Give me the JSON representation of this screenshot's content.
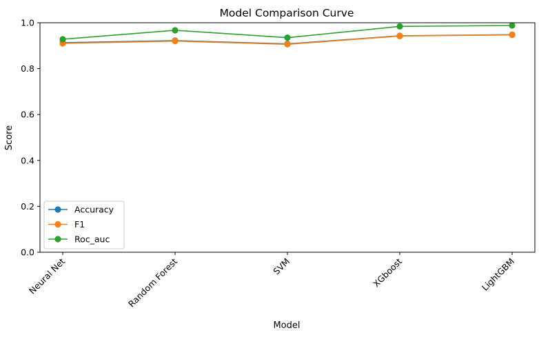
{
  "chart_data": {
    "type": "line",
    "title": "Model Comparison Curve",
    "xlabel": "Model",
    "ylabel": "Score",
    "categories": [
      "Neural Net",
      "Random Forest",
      "SVM",
      "XGboost",
      "LightGBM"
    ],
    "ylim": [
      0,
      1.0
    ],
    "yticks": [
      0.0,
      0.2,
      0.4,
      0.6,
      0.8,
      1.0
    ],
    "ytick_labels": [
      "0.0",
      "0.2",
      "0.4",
      "0.6",
      "0.8",
      "1.0"
    ],
    "grid": false,
    "legend_position": "lower-left",
    "series": [
      {
        "name": "Accuracy",
        "color": "#1f77b4",
        "values": [
          0.913,
          0.922,
          0.908,
          0.943,
          0.948
        ]
      },
      {
        "name": "F1",
        "color": "#ff7f0e",
        "values": [
          0.91,
          0.92,
          0.906,
          0.942,
          0.947
        ]
      },
      {
        "name": "Roc_auc",
        "color": "#2ca02c",
        "values": [
          0.928,
          0.967,
          0.935,
          0.984,
          0.988
        ]
      }
    ]
  }
}
